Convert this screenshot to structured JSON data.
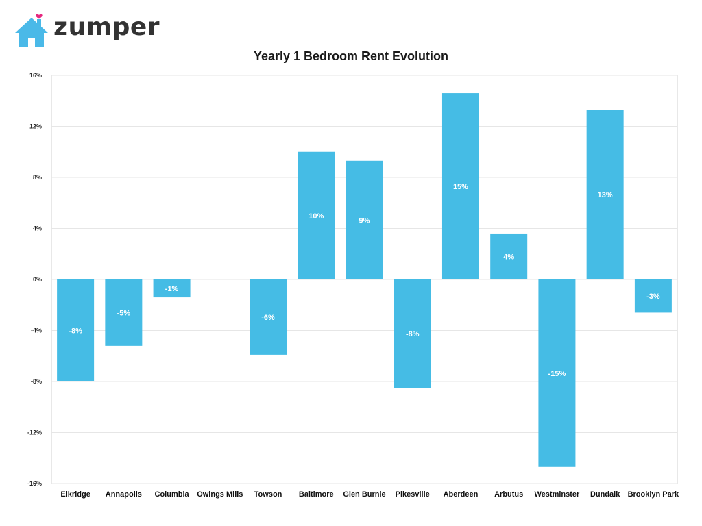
{
  "brand": {
    "name": "zumper",
    "color": "#4ab9e8",
    "heart_color": "#e6287f"
  },
  "chart_data": {
    "type": "bar",
    "title": "Yearly 1 Bedroom Rent Evolution",
    "xlabel": "",
    "ylabel": "",
    "categories": [
      "Elkridge",
      "Annapolis",
      "Columbia",
      "Owings Mills",
      "Towson",
      "Baltimore",
      "Glen Burnie",
      "Pikesville",
      "Aberdeen",
      "Arbutus",
      "Westminster",
      "Dundalk",
      "Brooklyn Park"
    ],
    "values": [
      -8.0,
      -5.2,
      -1.4,
      0,
      -5.9,
      10.0,
      9.3,
      -8.5,
      14.6,
      3.6,
      -14.7,
      13.3,
      -2.6
    ],
    "data_labels": [
      "-8%",
      "-5%",
      "-1%",
      "",
      "-6%",
      "10%",
      "9%",
      "-8%",
      "15%",
      "4%",
      "-15%",
      "13%",
      "-3%"
    ],
    "ylim": [
      -16,
      16
    ],
    "yticks": [
      16,
      12,
      8,
      4,
      0,
      -4,
      -8,
      -12,
      -16
    ],
    "ytick_labels": [
      "16%",
      "12%",
      "8%",
      "4%",
      "0%",
      "-4%",
      "-8%",
      "-12%",
      "-16%"
    ],
    "bar_color": "#45bce5",
    "grid": true,
    "legend": "none"
  }
}
